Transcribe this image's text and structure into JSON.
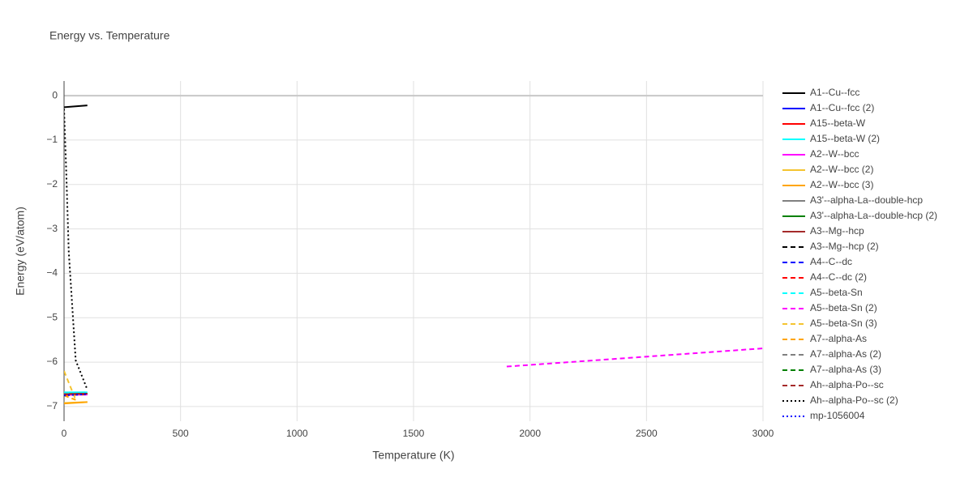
{
  "chart_data": {
    "type": "line",
    "title": "Energy vs. Temperature",
    "x_label": "Temperature (K)",
    "y_label": "Energy (eV/atom)",
    "xlim": [
      0,
      3000
    ],
    "ylim": [
      -7.33,
      0.33
    ],
    "xticks": [
      0,
      500,
      1000,
      1500,
      2000,
      2500,
      3000
    ],
    "yticks": [
      {
        "value": -7,
        "label": "−7"
      },
      {
        "value": -6,
        "label": "−6"
      },
      {
        "value": -5,
        "label": "−5"
      },
      {
        "value": -4,
        "label": "−4"
      },
      {
        "value": -3,
        "label": "−3"
      },
      {
        "value": -2,
        "label": "−2"
      },
      {
        "value": -1,
        "label": "−1"
      },
      0
    ],
    "grid": true,
    "legend": "right",
    "series": [
      {
        "name": "A1--Cu--fcc",
        "color": "#000000",
        "dash": "solid",
        "x": [
          0,
          100
        ],
        "values": [
          -0.26,
          -0.22
        ]
      },
      {
        "name": "A1--Cu--fcc (2)",
        "color": "#0000ff",
        "dash": "solid",
        "x": [
          0,
          100
        ],
        "values": [
          -6.72,
          -6.71
        ]
      },
      {
        "name": "A15--beta-W",
        "color": "#ff0000",
        "dash": "solid",
        "x": [
          0,
          100
        ],
        "values": [
          -6.73,
          -6.72
        ]
      },
      {
        "name": "A15--beta-W (2)",
        "color": "#00ffff",
        "dash": "solid",
        "x": [
          0,
          100
        ],
        "values": [
          -6.68,
          -6.68
        ]
      },
      {
        "name": "A2--W--bcc",
        "color": "#ff00ff",
        "dash": "solid",
        "x": [
          0,
          100
        ],
        "values": [
          -6.74,
          -6.73
        ]
      },
      {
        "name": "A2--W--bcc (2)",
        "color": "#f4c430",
        "dash": "solid",
        "x": [
          0,
          100
        ],
        "values": [
          -6.92,
          -6.9
        ]
      },
      {
        "name": "A2--W--bcc (3)",
        "color": "#ffa500",
        "dash": "solid",
        "x": [
          0,
          100
        ],
        "values": [
          -6.93,
          -6.9
        ]
      },
      {
        "name": "A3'--alpha-La--double-hcp",
        "color": "#808080",
        "dash": "solid",
        "x": [
          0,
          100
        ],
        "values": [
          -6.72,
          -6.71
        ]
      },
      {
        "name": "A3'--alpha-La--double-hcp (2)",
        "color": "#008000",
        "dash": "solid",
        "x": [
          0,
          100
        ],
        "values": [
          -6.72,
          -6.71
        ]
      },
      {
        "name": "A3--Mg--hcp",
        "color": "#a52a2a",
        "dash": "solid",
        "x": [
          0,
          100
        ],
        "values": [
          -6.72,
          -6.71
        ]
      },
      {
        "name": "A3--Mg--hcp (2)",
        "color": "#000000",
        "dash": "dash",
        "x": [
          0,
          100
        ],
        "values": [
          -6.74,
          -6.72
        ]
      },
      {
        "name": "A4--C--dc",
        "color": "#0000ff",
        "dash": "dash",
        "x": [
          0,
          100
        ],
        "values": [
          -6.74,
          -6.72
        ]
      },
      {
        "name": "A4--C--dc (2)",
        "color": "#ff0000",
        "dash": "dash",
        "x": [
          0,
          100
        ],
        "values": [
          -6.74,
          -6.72
        ]
      },
      {
        "name": "A5--beta-Sn",
        "color": "#00ffff",
        "dash": "dash",
        "x": [
          0,
          100
        ],
        "values": [
          -6.69,
          -6.68
        ]
      },
      {
        "name": "A5--beta-Sn (2)",
        "color": "#ff00ff",
        "dash": "dash",
        "x": [
          1900,
          3000
        ],
        "values": [
          -6.1,
          -5.69
        ]
      },
      {
        "name": "A5--beta-Sn (3)",
        "color": "#f4c430",
        "dash": "dash",
        "x": [
          0,
          50
        ],
        "values": [
          -6.2,
          -6.85
        ]
      },
      {
        "name": "A7--alpha-As",
        "color": "#ffa500",
        "dash": "dash",
        "x": [
          0,
          50
        ],
        "values": [
          -6.75,
          -6.85
        ]
      },
      {
        "name": "A7--alpha-As (2)",
        "color": "#808080",
        "dash": "dash",
        "x": [
          0,
          100
        ],
        "values": [
          -6.72,
          -6.71
        ]
      },
      {
        "name": "A7--alpha-As (3)",
        "color": "#008000",
        "dash": "dash",
        "x": [
          0,
          100
        ],
        "values": [
          -6.72,
          -6.71
        ]
      },
      {
        "name": "Ah--alpha-Po--sc",
        "color": "#a52a2a",
        "dash": "dash",
        "x": [
          0,
          100
        ],
        "values": [
          -6.72,
          -6.71
        ]
      },
      {
        "name": "Ah--alpha-Po--sc (2)",
        "color": "#000000",
        "dash": "dot",
        "x": [
          0,
          10,
          20,
          50,
          100
        ],
        "values": [
          -0.3,
          -1.8,
          -3.5,
          -5.96,
          -6.62
        ]
      },
      {
        "name": "mp-1056004",
        "color": "#0000ff",
        "dash": "dot",
        "x": [
          0,
          100
        ],
        "values": [
          -6.75,
          -6.72
        ]
      }
    ]
  }
}
